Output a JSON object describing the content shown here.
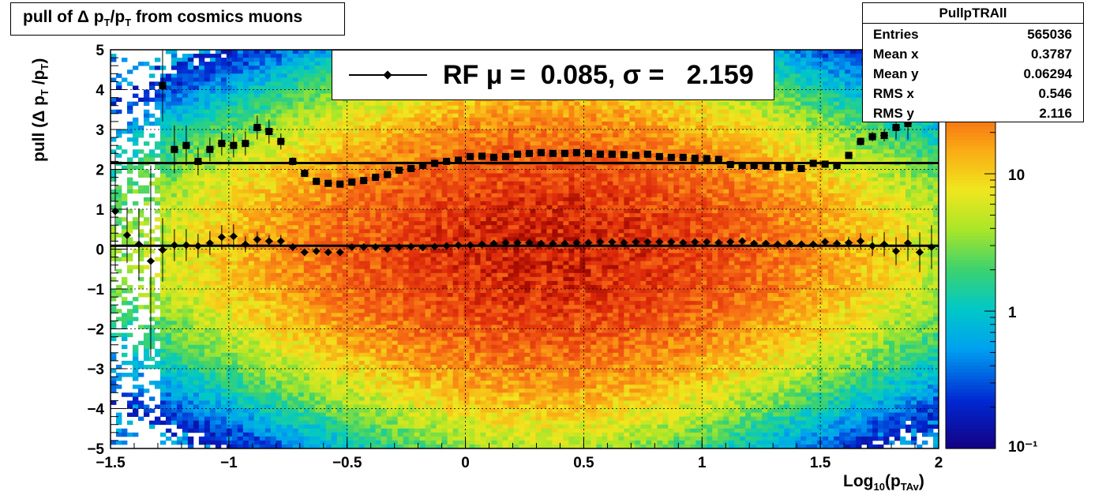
{
  "title": {
    "text": "pull of Δ p",
    "sub1": "T",
    "mid": "/p",
    "sub2": "T",
    "rest": " from cosmics muons"
  },
  "stats": {
    "name": "PullpTRAll",
    "rows": [
      {
        "key": "Entries",
        "value": "565036"
      },
      {
        "key": "Mean x",
        "value": "0.3787"
      },
      {
        "key": "Mean y",
        "value": "0.06294"
      },
      {
        "key": "RMS x",
        "value": "0.546"
      },
      {
        "key": "RMS y",
        "value": "2.116"
      }
    ]
  },
  "legend": {
    "label": "RF μ =  0.085, σ =   2.159"
  },
  "axes": {
    "ytitle": {
      "a": "pull (Δ p",
      "s1": "T",
      "b": " /p",
      "s2": "T",
      "c": ")"
    },
    "xtitle": {
      "a": "Log",
      "s1": "10",
      "b": "(p",
      "s2": "TAv",
      "c": ")"
    }
  },
  "chart_data": {
    "type": "heatmap",
    "xlim": [
      -1.5,
      2
    ],
    "ylim": [
      -5,
      5
    ],
    "z_scale": "log",
    "z_range": [
      0.1,
      80
    ],
    "x_ticks": [
      "−1.5",
      "−1",
      "−0.5",
      "0",
      "0.5",
      "1",
      "1.5",
      "2"
    ],
    "x_tick_values": [
      -1.5,
      -1,
      -0.5,
      0,
      0.5,
      1,
      1.5,
      2
    ],
    "y_ticks": [
      "−5",
      "−4",
      "−3",
      "−2",
      "−1",
      "0",
      "1",
      "2",
      "3",
      "4",
      "5"
    ],
    "y_tick_values": [
      -5,
      -4,
      -3,
      -2,
      -1,
      0,
      1,
      2,
      3,
      4,
      5
    ],
    "z_ticks": [
      "10",
      "1",
      "10⁻¹"
    ],
    "z_tick_values": [
      10,
      1,
      0.1
    ],
    "grid": true,
    "mean_series": {
      "marker": "diamond",
      "fit_value": 0.085,
      "x": [
        -1.48,
        -1.43,
        -1.38,
        -1.33,
        -1.28,
        -1.23,
        -1.18,
        -1.13,
        -1.08,
        -1.03,
        -0.98,
        -0.93,
        -0.88,
        -0.83,
        -0.78,
        -0.73,
        -0.68,
        -0.63,
        -0.58,
        -0.53,
        -0.48,
        -0.43,
        -0.38,
        -0.33,
        -0.28,
        -0.23,
        -0.18,
        -0.13,
        -0.08,
        -0.03,
        0.02,
        0.07,
        0.12,
        0.17,
        0.22,
        0.27,
        0.32,
        0.37,
        0.42,
        0.47,
        0.52,
        0.57,
        0.62,
        0.67,
        0.72,
        0.77,
        0.82,
        0.87,
        0.92,
        0.97,
        1.02,
        1.07,
        1.12,
        1.17,
        1.22,
        1.27,
        1.32,
        1.37,
        1.42,
        1.47,
        1.52,
        1.57,
        1.62,
        1.67,
        1.72,
        1.77,
        1.82,
        1.87,
        1.92,
        1.97
      ],
      "y": [
        0.95,
        0.35,
        0.12,
        -0.3,
        -0.02,
        0.1,
        0.1,
        0.08,
        0.15,
        0.3,
        0.32,
        0.12,
        0.24,
        0.2,
        0.2,
        0.05,
        -0.08,
        -0.05,
        -0.08,
        -0.08,
        0.05,
        0.05,
        0.05,
        0.0,
        0.05,
        0.06,
        0.04,
        0.06,
        0.08,
        0.1,
        0.1,
        0.12,
        0.14,
        0.16,
        0.16,
        0.16,
        0.14,
        0.14,
        0.14,
        0.16,
        0.16,
        0.18,
        0.18,
        0.16,
        0.18,
        0.18,
        0.18,
        0.18,
        0.16,
        0.18,
        0.18,
        0.16,
        0.18,
        0.2,
        0.14,
        0.14,
        0.12,
        0.14,
        0.12,
        0.12,
        0.18,
        0.14,
        0.16,
        0.2,
        0.08,
        0.12,
        -0.05,
        0.15,
        -0.08,
        0.05
      ],
      "err": [
        1.5,
        0.7,
        0.9,
        2.4,
        0.8,
        0.4,
        0.4,
        0.3,
        0.3,
        0.3,
        0.3,
        0.2,
        0.2,
        0.15,
        0.15,
        0.1,
        0.08,
        0.07,
        0.06,
        0.05,
        0.05,
        0.05,
        0.05,
        0.04,
        0.04,
        0.04,
        0.04,
        0.04,
        0.04,
        0.04,
        0.04,
        0.04,
        0.04,
        0.04,
        0.04,
        0.04,
        0.04,
        0.04,
        0.04,
        0.04,
        0.04,
        0.04,
        0.04,
        0.04,
        0.04,
        0.04,
        0.04,
        0.04,
        0.04,
        0.04,
        0.04,
        0.04,
        0.04,
        0.05,
        0.05,
        0.05,
        0.06,
        0.06,
        0.07,
        0.08,
        0.09,
        0.1,
        0.15,
        0.2,
        0.25,
        0.3,
        0.35,
        0.45,
        0.5,
        0.55
      ]
    },
    "rms_series": {
      "marker": "square",
      "fit_value": 2.159,
      "x": [
        -1.28,
        -1.23,
        -1.18,
        -1.13,
        -1.08,
        -1.03,
        -0.98,
        -0.93,
        -0.88,
        -0.83,
        -0.78,
        -0.73,
        -0.68,
        -0.63,
        -0.58,
        -0.53,
        -0.48,
        -0.43,
        -0.38,
        -0.33,
        -0.28,
        -0.23,
        -0.18,
        -0.13,
        -0.08,
        -0.03,
        0.02,
        0.07,
        0.12,
        0.17,
        0.22,
        0.27,
        0.32,
        0.37,
        0.42,
        0.47,
        0.52,
        0.57,
        0.62,
        0.67,
        0.72,
        0.77,
        0.82,
        0.87,
        0.92,
        0.97,
        1.02,
        1.07,
        1.12,
        1.17,
        1.22,
        1.27,
        1.32,
        1.37,
        1.42,
        1.47,
        1.52,
        1.57,
        1.62,
        1.67,
        1.72,
        1.77,
        1.82,
        1.87
      ],
      "y": [
        4.1,
        2.5,
        2.6,
        2.2,
        2.5,
        2.65,
        2.6,
        2.65,
        3.05,
        2.95,
        2.7,
        2.2,
        1.9,
        1.7,
        1.65,
        1.63,
        1.68,
        1.72,
        1.8,
        1.87,
        1.98,
        2.02,
        2.1,
        2.15,
        2.2,
        2.23,
        2.32,
        2.33,
        2.3,
        2.32,
        2.38,
        2.4,
        2.42,
        2.4,
        2.4,
        2.42,
        2.4,
        2.38,
        2.38,
        2.37,
        2.35,
        2.38,
        2.32,
        2.3,
        2.3,
        2.28,
        2.27,
        2.25,
        2.12,
        2.1,
        2.1,
        2.08,
        2.06,
        2.05,
        2.02,
        2.15,
        2.13,
        2.1,
        2.35,
        2.7,
        2.82,
        2.85,
        3.05,
        3.15
      ],
      "err": [
        0.9,
        0.6,
        0.5,
        0.35,
        0.3,
        0.3,
        0.3,
        0.3,
        0.3,
        0.3,
        0.2,
        0.1,
        0.06,
        0.05,
        0.04,
        0.04,
        0.04,
        0.03,
        0.03,
        0.03,
        0.03,
        0.03,
        0.03,
        0.03,
        0.03,
        0.03,
        0.03,
        0.03,
        0.03,
        0.03,
        0.03,
        0.03,
        0.03,
        0.03,
        0.03,
        0.03,
        0.03,
        0.03,
        0.03,
        0.03,
        0.03,
        0.03,
        0.03,
        0.03,
        0.03,
        0.03,
        0.03,
        0.03,
        0.03,
        0.03,
        0.03,
        0.03,
        0.03,
        0.04,
        0.04,
        0.04,
        0.05,
        0.05,
        0.08,
        0.1,
        0.12,
        0.15,
        0.3,
        0.4
      ]
    }
  }
}
